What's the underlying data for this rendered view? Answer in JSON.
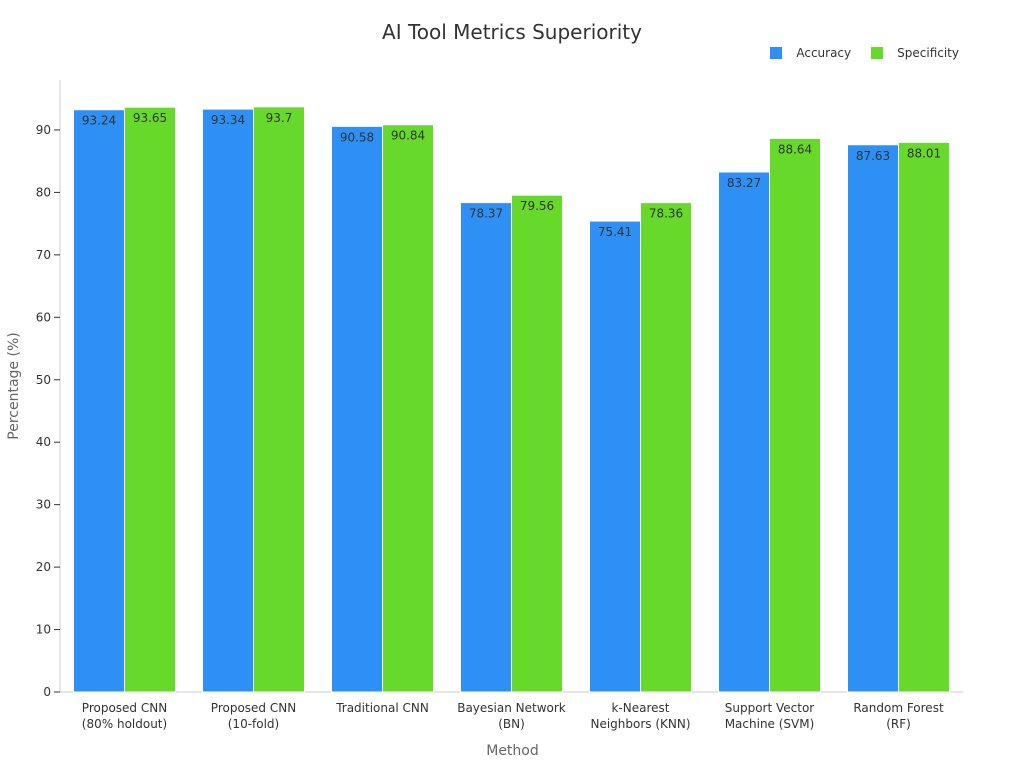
{
  "chart_data": {
    "type": "bar",
    "title": "AI Tool Metrics Superiority",
    "xlabel": "Method",
    "ylabel": "Percentage (%)",
    "ylim": [
      0,
      98
    ],
    "yticks": [
      0,
      10,
      20,
      30,
      40,
      50,
      60,
      70,
      80,
      90
    ],
    "categories": [
      [
        "Proposed CNN",
        "(80% holdout)"
      ],
      [
        "Proposed CNN",
        "(10-fold)"
      ],
      [
        "Traditional CNN"
      ],
      [
        "Bayesian Network",
        "(BN)"
      ],
      [
        "k-Nearest",
        "Neighbors (KNN)"
      ],
      [
        "Support Vector",
        "Machine (SVM)"
      ],
      [
        "Random Forest",
        "(RF)"
      ]
    ],
    "series": [
      {
        "name": "Accuracy",
        "color": "#2E90F5",
        "values": [
          93.24,
          93.34,
          90.58,
          78.37,
          75.41,
          83.27,
          87.63
        ]
      },
      {
        "name": "Specificity",
        "color": "#66D92A",
        "values": [
          93.65,
          93.7,
          90.84,
          79.56,
          78.36,
          88.64,
          88.01
        ]
      }
    ],
    "legend_position": "top-right",
    "grid": false
  }
}
